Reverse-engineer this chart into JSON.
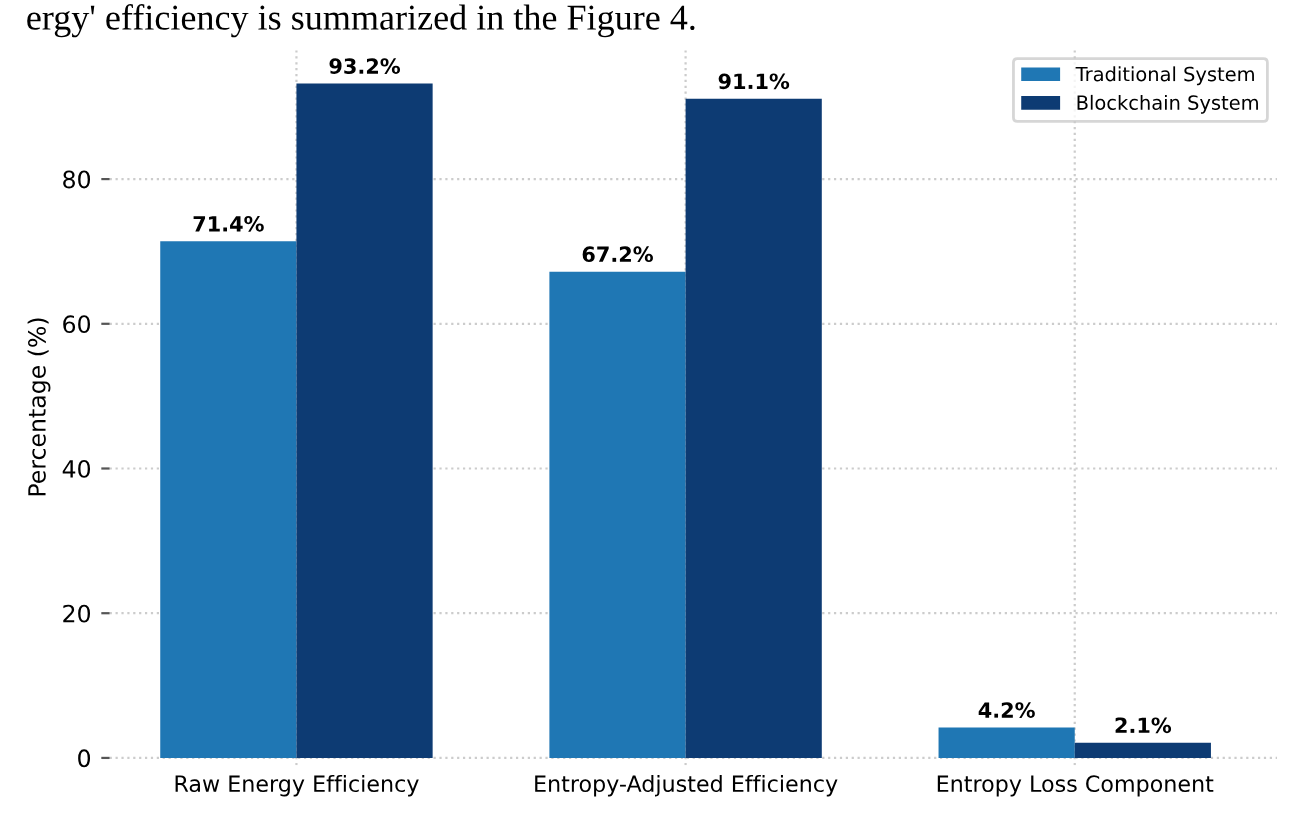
{
  "chart_data": {
    "type": "bar",
    "annotations": [
      "ergy' efficiency is summarized in the Figure 4."
    ],
    "ylabel": "Percentage (%)",
    "categories": [
      "Raw Energy Efficiency",
      "Entropy-Adjusted Efficiency",
      "Entropy Loss Component"
    ],
    "series": [
      {
        "name": "Traditional System",
        "color": "#1f77b4",
        "values": [
          71.4,
          67.2,
          4.2
        ],
        "value_labels": [
          "71.4%",
          "67.2%",
          "4.2%"
        ]
      },
      {
        "name": "Blockchain System",
        "color": "#0d3b73",
        "values": [
          93.2,
          91.1,
          2.1
        ],
        "value_labels": [
          "93.2%",
          "91.1%",
          "2.1%"
        ]
      }
    ],
    "ylim": [
      -1,
      98
    ],
    "yticks": [
      0,
      20,
      40,
      60,
      80
    ],
    "grid": true,
    "legend": "top right"
  }
}
